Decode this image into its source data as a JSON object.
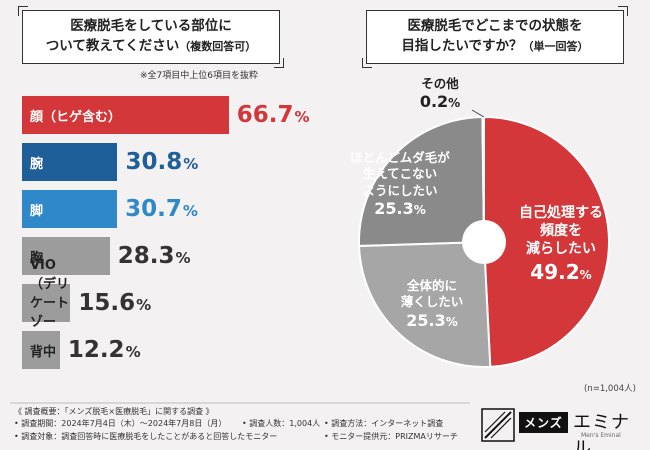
{
  "left_title": {
    "line1": "医療脱毛をしている部位に",
    "line2": "ついて教えてください",
    "line3": "（複数回答可）"
  },
  "right_title": {
    "line1": "医療脱毛でどこまでの状態を",
    "line2": "目指したいですか？",
    "line3": "（単一回答）"
  },
  "note": "※全7項目中上位6項目を抜粋",
  "n_note": "(n=1,004人)",
  "chart_data": [
    {
      "type": "bar",
      "orientation": "horizontal",
      "categories": [
        "顔（ヒゲ含む）",
        "腕",
        "脚",
        "胸",
        "VIO（デリケートゾーン）",
        "背中"
      ],
      "values": [
        66.7,
        30.8,
        30.7,
        28.3,
        15.6,
        12.2
      ],
      "value_labels": [
        "66.7",
        "30.8",
        "30.7",
        "28.3",
        "15.6",
        "12.2"
      ],
      "unit": "%",
      "colors": [
        "#d3373a",
        "#1f5f99",
        "#2f88c8",
        "#9c9c9c",
        "#9c9c9c",
        "#9c9c9c"
      ],
      "value_colors": [
        "#d3373a",
        "#1f5f99",
        "#2f88c8",
        "#333333",
        "#333333",
        "#333333"
      ],
      "title": "医療脱毛をしている部位について教えてください（複数回答可）"
    },
    {
      "type": "pie",
      "donut": true,
      "categories": [
        "自己処理する頻度を減らしたい",
        "全体的に薄くしたい",
        "ほとんどムダ毛が生えてこないようにしたい",
        "その他"
      ],
      "values": [
        49.2,
        25.3,
        25.3,
        0.2
      ],
      "unit": "%",
      "colors": [
        "#d3373a",
        "#a6a6a6",
        "#8a8a8a",
        "#444444"
      ],
      "title": "医療脱毛でどこまでの状態を目指したいですか？（単一回答）"
    }
  ],
  "pie_labels": {
    "red": {
      "lines": [
        "自己処理する",
        "頻度を",
        "減らしたい"
      ],
      "value": "49.2",
      "pct": "%"
    },
    "bottom": {
      "lines": [
        "全体的に",
        "薄くしたい"
      ],
      "value": "25.3",
      "pct": "%"
    },
    "left": {
      "lines": [
        "ほとんどムダ毛が",
        "生えてこない",
        "ようにしたい"
      ],
      "value": "25.3",
      "pct": "%"
    },
    "other": {
      "lines": [
        "その他"
      ],
      "value": "0.2",
      "pct": "%"
    }
  },
  "footer": {
    "title": "《 調査概要：「メンズ脱毛×医療脱毛」に関する調査 》",
    "period": "• 調査期間：2024年7月4日（木）〜2024年7月8日（月）",
    "people": "• 調査人数：1,004人",
    "method": "• 調査方法：インターネット調査",
    "target": "• 調査対象：調査回答時に医療脱毛をしたことがあると回答したモニター",
    "provider": "• モニター提供元：PRIZMAリサーチ"
  },
  "logo": {
    "tag": "メンズ",
    "brand": "エミナル",
    "sub": "Men's Eminal"
  }
}
